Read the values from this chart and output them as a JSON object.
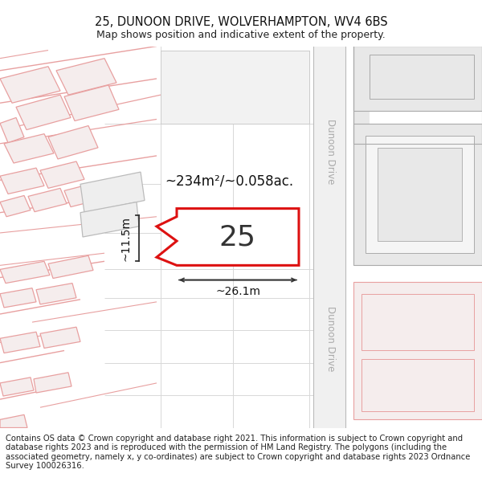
{
  "title_line1": "25, DUNOON DRIVE, WOLVERHAMPTON, WV4 6BS",
  "title_line2": "Map shows position and indicative extent of the property.",
  "footer_text": "Contains OS data © Crown copyright and database right 2021. This information is subject to Crown copyright and database rights 2023 and is reproduced with the permission of HM Land Registry. The polygons (including the associated geometry, namely x, y co-ordinates) are subject to Crown copyright and database rights 2023 Ordnance Survey 100026316.",
  "bg_color": "#ffffff",
  "map_bg": "#ffffff",
  "road_label": "Dunoon Drive",
  "property_label": "25",
  "area_label": "~234m²/~0.058ac.",
  "width_label": "~26.1m",
  "height_label": "~11.5m",
  "title_fontsize": 10.5,
  "subtitle_fontsize": 9,
  "footer_fontsize": 7.2,
  "pink_building_fill": "#f5eded",
  "pink_building_edge": "#e8a0a0",
  "gray_building_fill": "#e8e8e8",
  "gray_building_edge": "#aaaaaa",
  "highlight_fill": "#ffffff",
  "highlight_edge": "#dd1111",
  "road_stripe": "#e8e8e8",
  "road_edge": "#bbbbbb",
  "dim_color": "#333333",
  "label_color": "#555555",
  "road_label_color": "#aaaaaa",
  "grid_color": "#d8d8d8"
}
